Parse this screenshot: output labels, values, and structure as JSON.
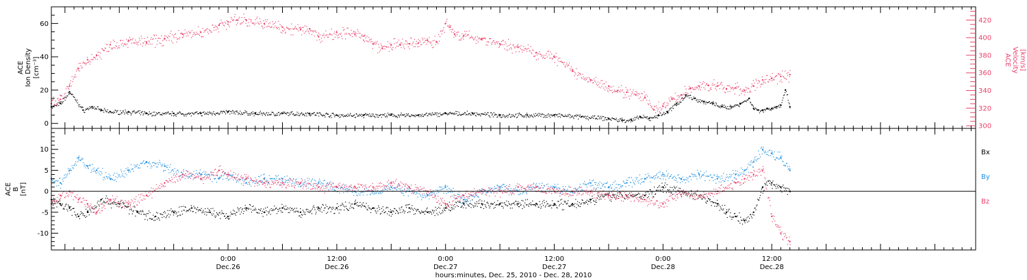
{
  "colors": {
    "axis": "#000000",
    "black": "#000000",
    "red": "#e8416a",
    "blue": "#1f8fe0"
  },
  "xaxis": {
    "title": "hours:minutes, Dec. 25, 2010 - Dec. 28, 2010",
    "range_hours": [
      -19.5,
      82.5
    ],
    "ticks": [
      {
        "h": 0,
        "time": "0:00",
        "date": "Dec.26"
      },
      {
        "h": 12,
        "time": "12:00",
        "date": "Dec.26"
      },
      {
        "h": 24,
        "time": "0:00",
        "date": "Dec.27"
      },
      {
        "h": 36,
        "time": "12:00",
        "date": "Dec.27"
      },
      {
        "h": 48,
        "time": "0:00",
        "date": "Dec.28"
      },
      {
        "h": 60,
        "time": "12:00",
        "date": "Dec.28"
      }
    ]
  },
  "chart_data": [
    {
      "type": "scatter",
      "ylabel_lines": [
        "ACE",
        "Ion Density",
        "[cm⁻³]"
      ],
      "ylim": [
        -3,
        70
      ],
      "yticks": [
        0,
        20,
        40,
        60
      ],
      "y2label_lines": [
        "ACE",
        "Velocity",
        "[km/s]"
      ],
      "y2lim": [
        297,
        435
      ],
      "y2ticks": [
        300,
        320,
        340,
        360,
        380,
        400,
        420
      ],
      "series": [
        {
          "color": "black",
          "axis": "left",
          "x": [
            -19.5,
            -18.5,
            -17.5,
            -16,
            -15,
            -14,
            -13,
            -11,
            -9,
            -6,
            -3,
            0,
            3,
            6,
            9,
            12,
            15,
            18,
            21,
            24,
            27,
            30,
            33,
            36,
            39,
            42,
            43.5,
            44.5,
            45.5,
            46.5,
            47.5,
            48.5,
            49.5,
            50.5,
            51.5,
            52.5,
            53.5,
            54.5,
            55.5,
            56.5,
            57.5,
            58,
            58.5,
            59,
            59.5,
            60,
            60.5,
            61,
            61.5,
            62
          ],
          "y": [
            10,
            12,
            19,
            8,
            10,
            8,
            7,
            7,
            6,
            6,
            6,
            7,
            6,
            6,
            6,
            5,
            5,
            5,
            5,
            6,
            6,
            5,
            5,
            5,
            4,
            3,
            2,
            2,
            4,
            3,
            5,
            7,
            12,
            17,
            15,
            13,
            12,
            10,
            10,
            12,
            15,
            9,
            8,
            8,
            9,
            9,
            10,
            11,
            20,
            10
          ]
        },
        {
          "color": "red",
          "axis": "right",
          "x": [
            -19.5,
            -18.5,
            -17.5,
            -16.5,
            -15.5,
            -14.5,
            -13,
            -11,
            -9,
            -7,
            -5,
            -3,
            -1,
            0,
            1,
            2,
            4,
            6,
            8,
            9,
            10,
            12,
            14,
            15,
            16,
            17,
            18,
            19,
            20,
            21,
            22,
            23,
            24,
            24.5,
            25,
            26,
            28,
            30,
            32,
            34,
            36,
            38,
            40,
            42,
            43,
            44,
            45,
            46,
            47,
            48,
            49,
            50,
            51,
            52,
            53,
            54,
            55,
            56,
            57,
            58,
            59,
            60,
            61,
            62
          ],
          "y": [
            325,
            330,
            345,
            365,
            375,
            380,
            392,
            396,
            395,
            399,
            404,
            406,
            414,
            418,
            420,
            420,
            416,
            412,
            409,
            410,
            401,
            406,
            404,
            402,
            393,
            388,
            392,
            392,
            393,
            394,
            397,
            395,
            416,
            412,
            404,
            402,
            399,
            393,
            389,
            383,
            378,
            362,
            352,
            345,
            340,
            338,
            335,
            332,
            318,
            322,
            330,
            335,
            342,
            345,
            346,
            345,
            342,
            343,
            340,
            345,
            352,
            354,
            356,
            358
          ]
        }
      ]
    },
    {
      "type": "scatter",
      "ylabel_lines": [
        "ACE",
        "B",
        "[nT]"
      ],
      "ylim": [
        -14,
        15
      ],
      "yticks": [
        -10,
        -5,
        0,
        5,
        10
      ],
      "zero_line": true,
      "legend_position": "right",
      "series": [
        {
          "name": "Bx",
          "color": "black",
          "x": [
            -19.5,
            -18.5,
            -17.5,
            -16.5,
            -15.5,
            -14,
            -12,
            -10,
            -8,
            -6,
            -4,
            -2,
            0,
            2,
            4,
            6,
            8,
            10,
            12,
            14,
            16,
            18,
            20,
            22,
            24,
            26,
            28,
            30,
            32,
            34,
            36,
            38,
            40,
            42,
            44,
            46,
            48,
            50,
            52,
            54,
            55,
            56,
            57,
            58,
            59,
            60,
            61,
            62
          ],
          "y": [
            -2,
            -3,
            -4,
            -6,
            -5,
            -2,
            -3,
            -5,
            -6,
            -5,
            -4,
            -5,
            -6,
            -4,
            -5,
            -4,
            -5,
            -4,
            -4,
            -3,
            -4,
            -5,
            -4,
            -5,
            -4,
            -3,
            -3,
            -3,
            -3,
            -3,
            -3,
            -3,
            -2,
            -1,
            -1,
            -1,
            1,
            0,
            -1,
            -3,
            -5,
            -6,
            -7,
            -5,
            1,
            2,
            1,
            0
          ]
        },
        {
          "name": "By",
          "color": "blue",
          "x": [
            -19.5,
            -18.5,
            -17.5,
            -16.5,
            -15.5,
            -14.5,
            -13,
            -11,
            -9,
            -7,
            -5,
            -3,
            -1,
            0,
            2,
            4,
            6,
            8,
            10,
            12,
            14,
            16,
            18,
            20,
            22,
            24,
            26,
            28,
            30,
            32,
            34,
            36,
            38,
            40,
            42,
            44,
            46,
            48,
            50,
            52,
            54,
            56,
            57,
            58,
            59,
            60,
            61,
            62
          ],
          "y": [
            3,
            2,
            5,
            8,
            6,
            5,
            3,
            5,
            7,
            6,
            4,
            4,
            3,
            4,
            2,
            3,
            3,
            2,
            2,
            1,
            0,
            0,
            1,
            0,
            -1,
            1,
            -2,
            0,
            1,
            0,
            1,
            1,
            0,
            2,
            1,
            2,
            3,
            4,
            3,
            4,
            3,
            4,
            5,
            7,
            10,
            9,
            8,
            5
          ]
        },
        {
          "name": "Bz",
          "color": "red",
          "x": [
            -19.5,
            -18.5,
            -17.5,
            -16.5,
            -15.5,
            -14.5,
            -13,
            -11,
            -9,
            -7,
            -5,
            -3,
            -1,
            0,
            2,
            4,
            6,
            8,
            10,
            12,
            14,
            16,
            18,
            20,
            22,
            24,
            26,
            28,
            30,
            32,
            34,
            36,
            38,
            40,
            42,
            44,
            46,
            48,
            50,
            52,
            54,
            56,
            57,
            58,
            59,
            60,
            61,
            62
          ],
          "y": [
            -3,
            -1,
            0,
            -2,
            -3,
            -5,
            -2,
            -3,
            -1,
            2,
            4,
            3,
            5,
            4,
            3,
            2,
            2,
            2,
            1,
            1,
            1,
            1,
            2,
            1,
            0,
            -3,
            -1,
            0,
            0,
            1,
            1,
            0,
            0,
            0,
            -1,
            -1,
            -2,
            -3,
            0,
            -1,
            0,
            2,
            3,
            4,
            5,
            -6,
            -10,
            -12
          ]
        }
      ]
    }
  ]
}
